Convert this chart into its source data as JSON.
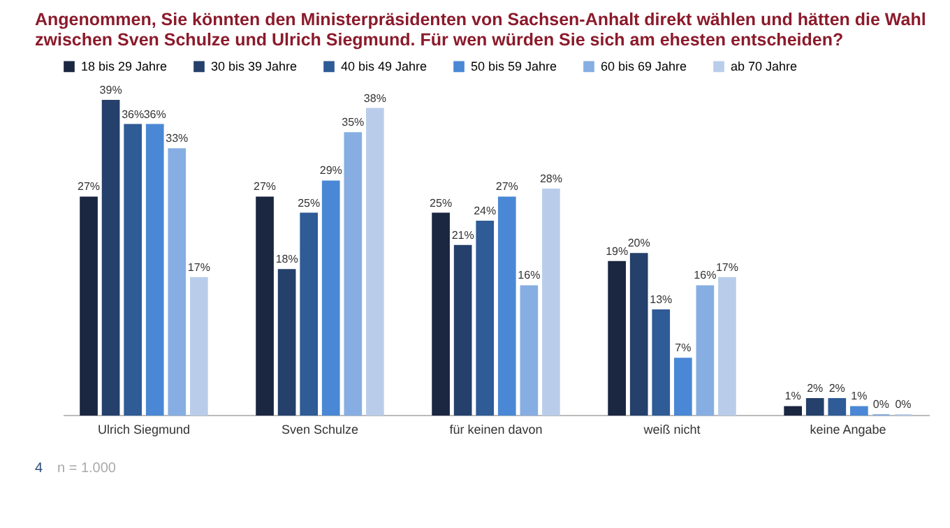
{
  "chart_data": {
    "type": "bar",
    "title": "Angenommen, Sie könnten den Ministerpräsidenten von Sachsen-Anhalt direkt wählen und hätten die Wahl zwischen Sven Schulze und Ulrich Siegmund. Für wen würden Sie sich am ehesten entscheiden?",
    "categories": [
      "Ulrich Siegmund",
      "Sven Schulze",
      "für keinen davon",
      "weiß nicht",
      "keine Angabe"
    ],
    "series": [
      {
        "name": "18 bis 29 Jahre",
        "color": "#1b2640",
        "values": [
          27,
          27,
          25,
          19,
          1
        ],
        "value_labels": [
          "27%",
          "27%",
          "25%",
          "19%",
          "1%"
        ]
      },
      {
        "name": "30 bis 39 Jahre",
        "color": "#24406b",
        "values": [
          39,
          18,
          21,
          20,
          2
        ],
        "value_labels": [
          "39%",
          "18%",
          "21%",
          "20%",
          "2%"
        ]
      },
      {
        "name": "40 bis 49 Jahre",
        "color": "#2f5b96",
        "values": [
          36,
          25,
          24,
          13,
          2
        ],
        "value_labels": [
          "36%",
          "25%",
          "24%",
          "13%",
          "2%"
        ]
      },
      {
        "name": "50 bis 59 Jahre",
        "color": "#4a88d6",
        "values": [
          36,
          29,
          27,
          7,
          1
        ],
        "value_labels": [
          "36%",
          "29%",
          "27%",
          "7%",
          "1%"
        ]
      },
      {
        "name": "60 bis 69 Jahre",
        "color": "#86aee3",
        "values": [
          33,
          35,
          16,
          16,
          0
        ],
        "value_labels": [
          "33%",
          "35%",
          "16%",
          "16%",
          "0%"
        ]
      },
      {
        "name": "ab 70 Jahre",
        "color": "#b9cdeb",
        "values": [
          17,
          38,
          28,
          17,
          0
        ],
        "value_labels": [
          "17%",
          "38%",
          "28%",
          "17%",
          "0%"
        ]
      }
    ],
    "legend": "top",
    "grid": false,
    "tick_labels": "x",
    "annotations": [
      "4",
      "n = 1.000"
    ]
  }
}
